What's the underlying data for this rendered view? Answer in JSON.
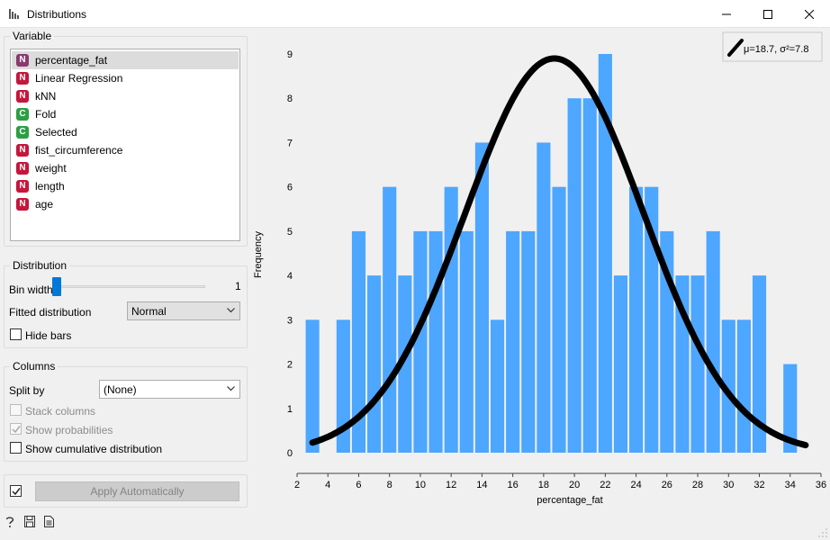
{
  "window": {
    "title": "Distributions",
    "app_icon": "bar-chart-icon"
  },
  "variable_box": {
    "title": "Variable",
    "items": [
      {
        "type": "N",
        "label": "percentage_fat",
        "selected": true
      },
      {
        "type": "N",
        "label": "Linear Regression"
      },
      {
        "type": "N",
        "label": "kNN"
      },
      {
        "type": "C",
        "label": "Fold"
      },
      {
        "type": "C",
        "label": "Selected"
      },
      {
        "type": "N",
        "label": "fist_circumference"
      },
      {
        "type": "N",
        "label": "weight"
      },
      {
        "type": "N",
        "label": "length"
      },
      {
        "type": "N",
        "label": "age"
      }
    ]
  },
  "distribution_box": {
    "title": "Distribution",
    "bin_width_label": "Bin width",
    "bin_width_value": "1",
    "fitted_label": "Fitted distribution",
    "fitted_value": "Normal",
    "hide_bars_label": "Hide bars"
  },
  "columns_box": {
    "title": "Columns",
    "split_by_label": "Split by",
    "split_by_value": "(None)",
    "stack_columns_label": "Stack columns",
    "show_probabilities_label": "Show probabilities",
    "show_cumulative_label": "Show cumulative distribution"
  },
  "apply": {
    "button_label": "Apply Automatically",
    "auto_checked": true
  },
  "status_icons": [
    "help-icon",
    "save-icon",
    "report-icon"
  ],
  "colors": {
    "bar": "#4da6ff",
    "curve": "#000000",
    "numeric_badge": "#c7163a",
    "categorical_badge": "#2e9e45",
    "accent": "#0078d7"
  },
  "chart_data": {
    "type": "bar",
    "xlabel": "percentage_fat",
    "ylabel": "Frequency",
    "xlim": [
      2,
      36
    ],
    "ylim": [
      0,
      9
    ],
    "xticks": [
      2,
      4,
      6,
      8,
      10,
      12,
      14,
      16,
      18,
      20,
      22,
      24,
      26,
      28,
      30,
      32,
      34,
      36
    ],
    "yticks": [
      0,
      1,
      2,
      3,
      4,
      5,
      6,
      7,
      8,
      9
    ],
    "bin_width": 1,
    "bins": [
      {
        "x": 3,
        "count": 3
      },
      {
        "x": 5,
        "count": 3
      },
      {
        "x": 6,
        "count": 5
      },
      {
        "x": 7,
        "count": 4
      },
      {
        "x": 8,
        "count": 6
      },
      {
        "x": 9,
        "count": 4
      },
      {
        "x": 10,
        "count": 5
      },
      {
        "x": 11,
        "count": 5
      },
      {
        "x": 12,
        "count": 6
      },
      {
        "x": 13,
        "count": 5
      },
      {
        "x": 14,
        "count": 7
      },
      {
        "x": 15,
        "count": 3
      },
      {
        "x": 16,
        "count": 5
      },
      {
        "x": 17,
        "count": 5
      },
      {
        "x": 18,
        "count": 7
      },
      {
        "x": 19,
        "count": 6
      },
      {
        "x": 20,
        "count": 8
      },
      {
        "x": 21,
        "count": 8
      },
      {
        "x": 22,
        "count": 9
      },
      {
        "x": 23,
        "count": 4
      },
      {
        "x": 24,
        "count": 6
      },
      {
        "x": 25,
        "count": 6
      },
      {
        "x": 26,
        "count": 5
      },
      {
        "x": 27,
        "count": 4
      },
      {
        "x": 28,
        "count": 4
      },
      {
        "x": 29,
        "count": 5
      },
      {
        "x": 30,
        "count": 3
      },
      {
        "x": 31,
        "count": 3
      },
      {
        "x": 32,
        "count": 4
      },
      {
        "x": 34,
        "count": 2
      }
    ],
    "fit": {
      "distribution": "Normal",
      "mu": 18.7,
      "sigma2": 7.8,
      "peak": 8.9,
      "x_range": [
        3,
        35
      ]
    },
    "legend": {
      "text": "μ=18.7, σ²=7.8",
      "placement": "top-right"
    }
  }
}
